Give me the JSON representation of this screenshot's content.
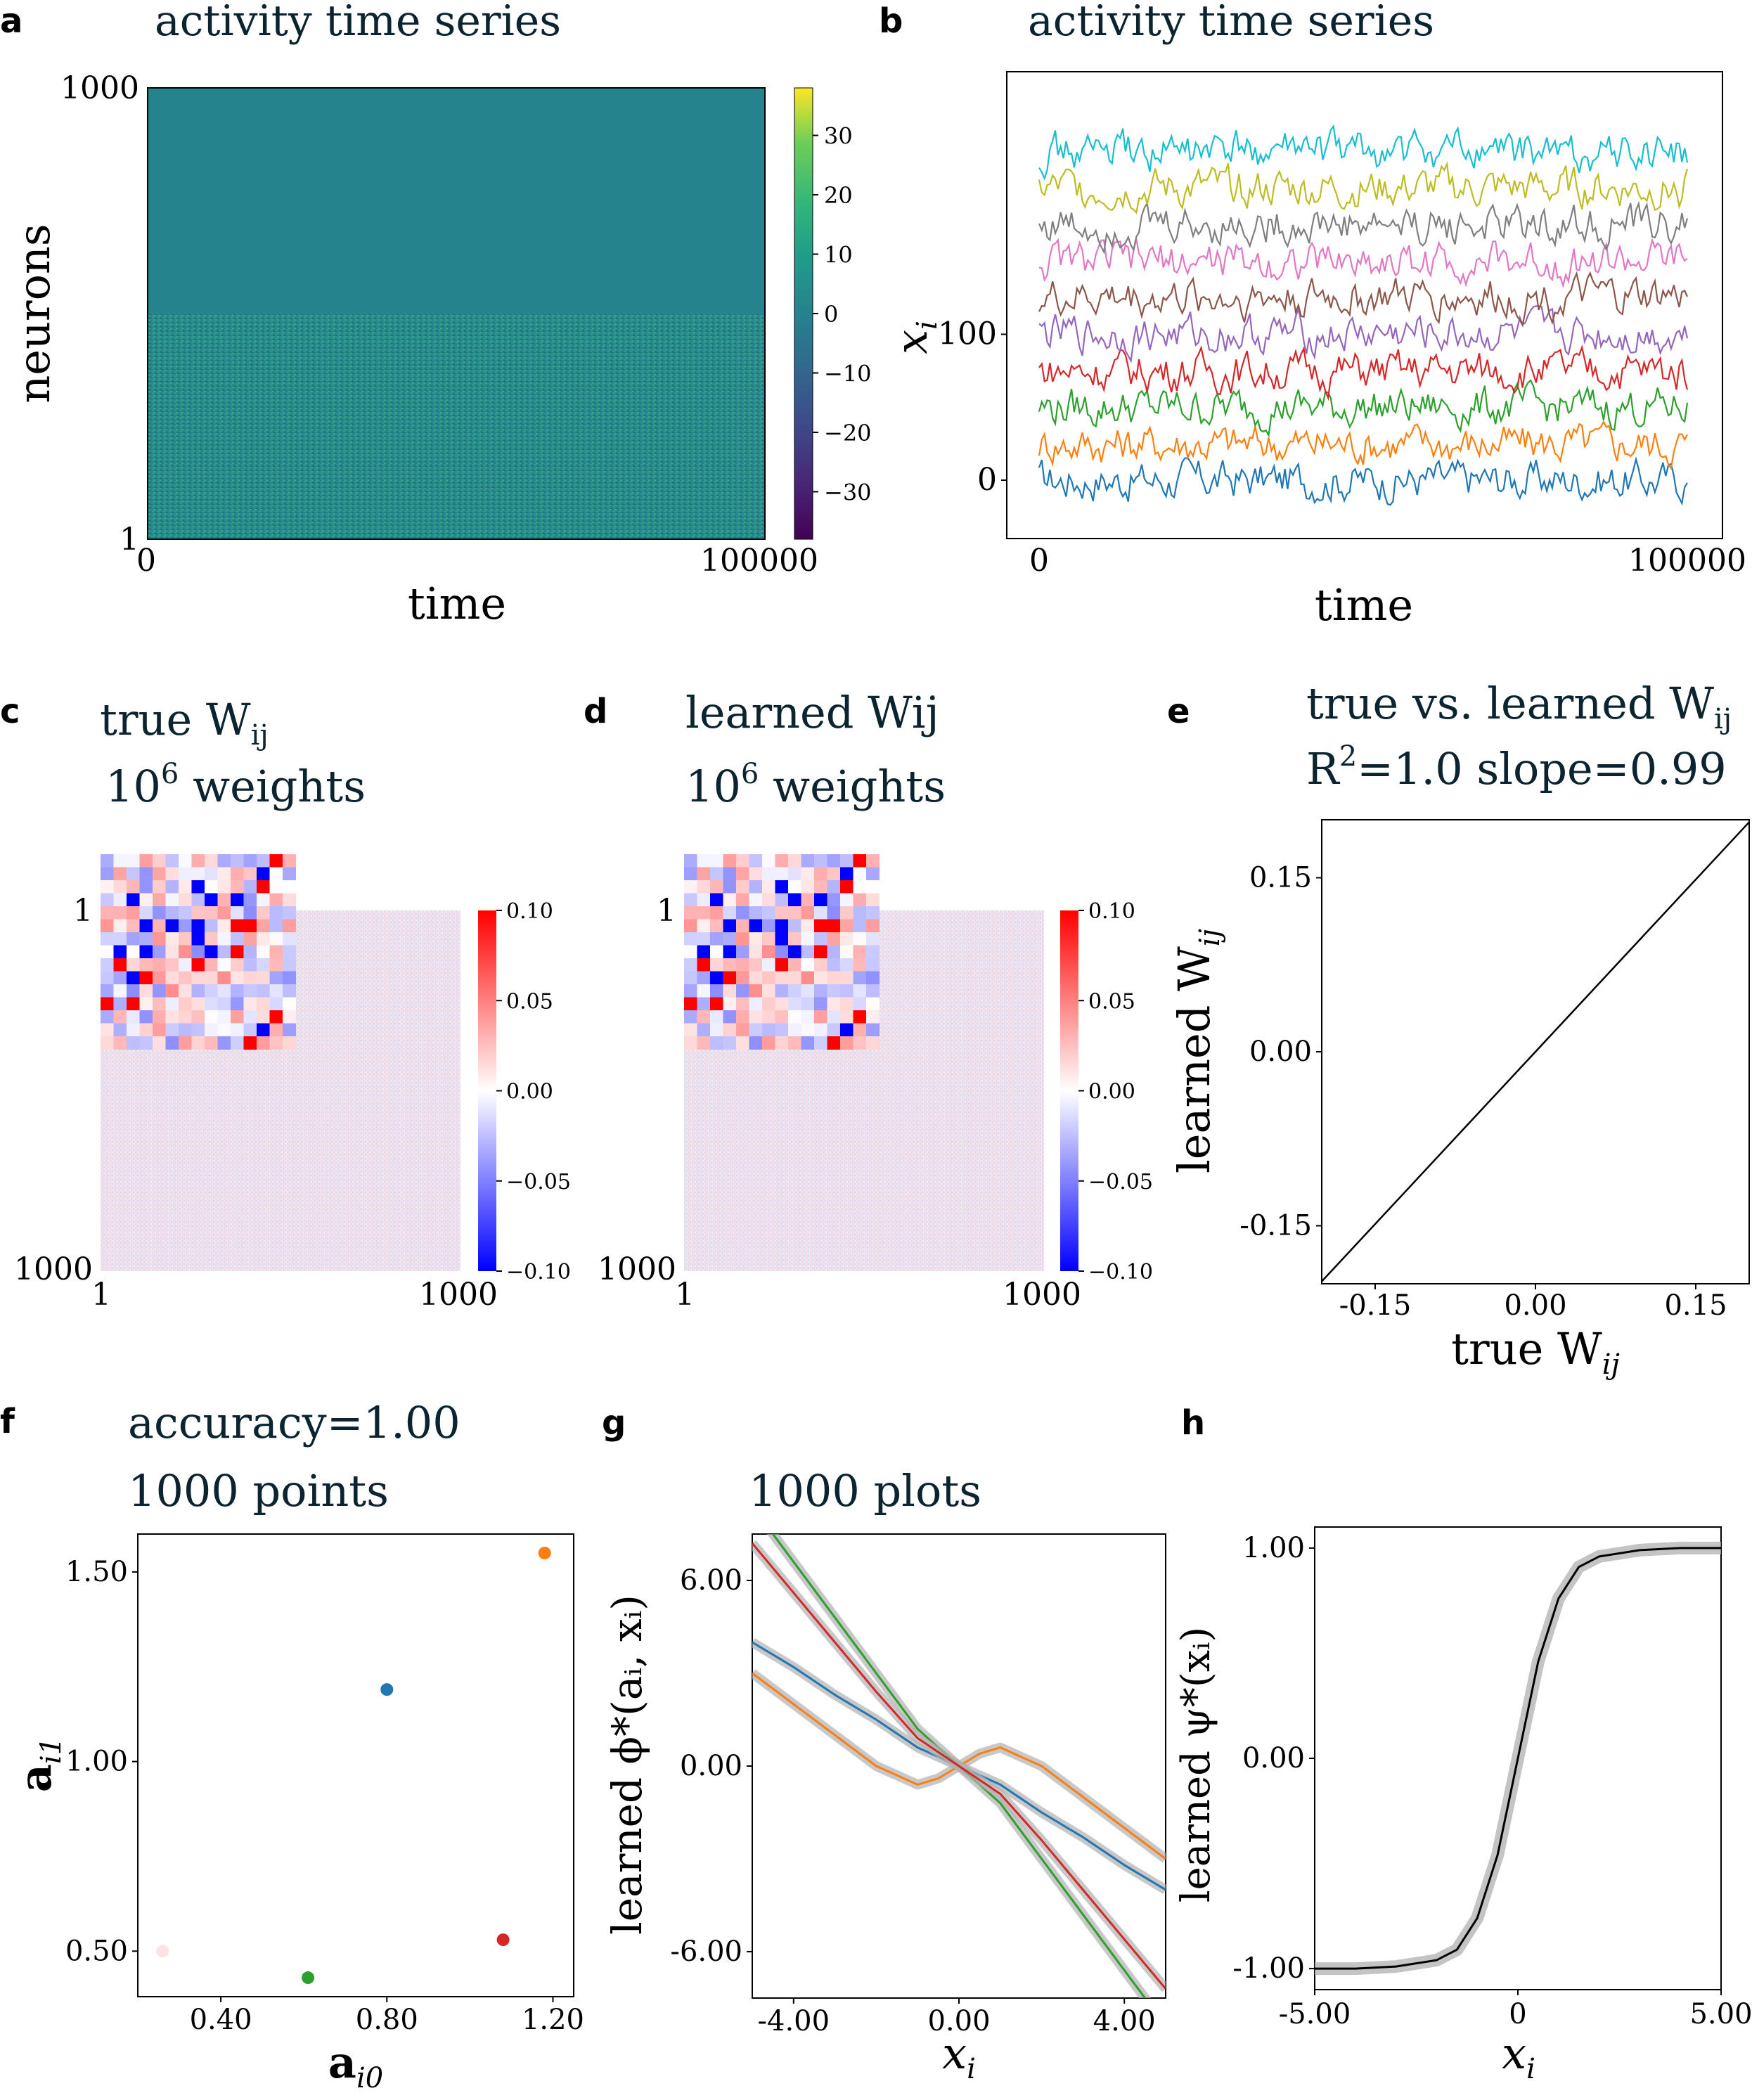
{
  "panels": {
    "a": {
      "letter": "a",
      "title": "activity time series",
      "xlabel": "time",
      "ylabel": "neurons",
      "xticks": [
        "0",
        "100000"
      ],
      "yticks": [
        "1000",
        "1"
      ],
      "colorbar_ticks": [
        "30",
        "20",
        "10",
        "0",
        "−10",
        "−20",
        "−30"
      ]
    },
    "b": {
      "letter": "b",
      "title": "activity time series",
      "xlabel": "time",
      "ylabel": "x",
      "ylabel_sub": "i",
      "xticks": [
        "0",
        "100000"
      ],
      "yticks": [
        "100",
        "0"
      ]
    },
    "c": {
      "letter": "c",
      "title_main": "true W",
      "title_sub": "ij",
      "title_line2": "10",
      "title_line2_sup": "6",
      "title_line2_rest": " weights",
      "xticks": [
        "1",
        "1000"
      ],
      "yticks": [
        "1",
        "1000"
      ],
      "colorbar_ticks": [
        "0.10",
        "0.05",
        "0.00",
        "−0.05",
        "−0.10"
      ]
    },
    "d": {
      "letter": "d",
      "title_main": "learned Wij",
      "title_line2": "10",
      "title_line2_sup": "6",
      "title_line2_rest": " weights",
      "xticks": [
        "1",
        "1000"
      ],
      "yticks": [
        "1",
        "1000"
      ],
      "colorbar_ticks": [
        "0.10",
        "0.05",
        "0.00",
        "−0.05",
        "−0.10"
      ]
    },
    "e": {
      "letter": "e",
      "title_main": "true vs. learned W",
      "title_sub": "ij",
      "title_line2": "R",
      "title_line2_sup": "2",
      "title_line2_rest": "=1.0  slope=0.99",
      "xlabel": "true W",
      "xlabel_sub": "ij",
      "ylabel": "learned W",
      "ylabel_sub": "ij",
      "xticks": [
        "-0.15",
        "0.00",
        "0.15"
      ],
      "yticks": [
        "0.15",
        "0.00",
        "-0.15"
      ]
    },
    "f": {
      "letter": "f",
      "title": "accuracy=1.00",
      "title_line2": "1000 points",
      "xlabel": "a",
      "xlabel_sub": "i0",
      "ylabel": "a",
      "ylabel_sub": "i1",
      "xticks": [
        "0.40",
        "0.80",
        "1.20"
      ],
      "yticks": [
        "1.50",
        "1.00",
        "0.50"
      ]
    },
    "g": {
      "letter": "g",
      "title": "1000 plots",
      "xlabel": "x",
      "xlabel_sub": "i",
      "ylabel": "learned ϕ*(aᵢ, xᵢ)",
      "xticks": [
        "-4.00",
        "0.00",
        "4.00"
      ],
      "yticks": [
        "6.00",
        "0.00",
        "-6.00"
      ]
    },
    "h": {
      "letter": "h",
      "xlabel": "x",
      "xlabel_sub": "i",
      "ylabel": "learned ψ*(xᵢ)",
      "xticks": [
        "-5.00",
        "0",
        "5.00"
      ],
      "yticks": [
        "1.00",
        "0.00",
        "-1.00"
      ]
    }
  },
  "colors": {
    "title": "#0b2430",
    "series": [
      "#1f77b4",
      "#ff7f0e",
      "#2ca02c",
      "#d62728",
      "#9467bd",
      "#8c564b",
      "#e377c2",
      "#7f7f7f",
      "#bcbd22",
      "#17becf"
    ]
  },
  "chart_data": [
    {
      "panel": "a",
      "type": "heatmap",
      "x_range": [
        0,
        100000
      ],
      "y_range": [
        1,
        1000
      ],
      "colorbar_range": [
        -38,
        38
      ],
      "colormap": "viridis",
      "notes_values": "upper neurons (~500-1000) near 0; lower neurons (~1-500) spread roughly -15 to 15"
    },
    {
      "panel": "b",
      "type": "line",
      "x_range": [
        0,
        100000
      ],
      "ylim": [
        -40,
        280
      ],
      "series_offsets": [
        0,
        25,
        50,
        75,
        100,
        125,
        150,
        175,
        200,
        225
      ]
    },
    {
      "panel": "c",
      "type": "heatmap",
      "x_range": [
        1,
        1000
      ],
      "y_range": [
        1,
        1000
      ],
      "colorbar_range": [
        -0.1,
        0.1
      ]
    },
    {
      "panel": "d",
      "type": "heatmap",
      "x_range": [
        1,
        1000
      ],
      "y_range": [
        1,
        1000
      ],
      "colorbar_range": [
        -0.1,
        0.1
      ]
    },
    {
      "panel": "e",
      "type": "line",
      "xlim": [
        -0.2,
        0.2
      ],
      "ylim": [
        -0.2,
        0.2
      ],
      "x": [
        -0.2,
        0.2
      ],
      "y": [
        -0.198,
        0.198
      ]
    },
    {
      "panel": "f",
      "type": "scatter",
      "xlim": [
        0.2,
        1.25
      ],
      "ylim": [
        0.38,
        1.6
      ],
      "points": [
        {
          "x": 0.8,
          "y": 1.19,
          "color": "#1f77b4"
        },
        {
          "x": 1.18,
          "y": 1.55,
          "color": "#ff7f0e"
        },
        {
          "x": 0.61,
          "y": 0.43,
          "color": "#2ca02c"
        },
        {
          "x": 1.08,
          "y": 0.53,
          "color": "#d62728"
        },
        {
          "x": 0.26,
          "y": 0.5,
          "color": "#fbe4e4"
        }
      ]
    },
    {
      "panel": "g",
      "type": "line",
      "xlim": [
        -5,
        5
      ],
      "ylim": [
        -7.5,
        7.5
      ],
      "series": [
        {
          "color": "#1f77b4",
          "x": [
            -5,
            -4,
            -3,
            -2,
            -1,
            0,
            1,
            2,
            3,
            4,
            5
          ],
          "y": [
            4.0,
            3.2,
            2.3,
            1.5,
            0.6,
            0.0,
            -0.6,
            -1.5,
            -2.3,
            -3.2,
            -4.0
          ]
        },
        {
          "color": "#ff7f0e",
          "x": [
            -5,
            -4,
            -3,
            -2,
            -1,
            -0.5,
            0,
            0.5,
            1,
            2,
            3,
            4,
            5
          ],
          "y": [
            3.0,
            2.0,
            1.0,
            0.0,
            -0.6,
            -0.4,
            0.0,
            0.4,
            0.6,
            0.0,
            -1.0,
            -2.0,
            -3.0
          ]
        },
        {
          "color": "#2ca02c",
          "x": [
            -5,
            -4,
            -3,
            -2,
            -1,
            0,
            1,
            2,
            3,
            4,
            5
          ],
          "y": [
            8.4,
            6.6,
            4.8,
            3.0,
            1.2,
            0.0,
            -1.2,
            -3.0,
            -4.8,
            -6.6,
            -8.4
          ]
        },
        {
          "color": "#d62728",
          "x": [
            -5,
            -4,
            -3,
            -2,
            -1,
            0,
            1,
            2,
            3,
            4,
            5
          ],
          "y": [
            7.2,
            5.6,
            4.0,
            2.4,
            0.9,
            0.0,
            -0.9,
            -2.4,
            -4.0,
            -5.6,
            -7.2
          ]
        }
      ]
    },
    {
      "panel": "h",
      "type": "line",
      "xlim": [
        -5,
        5
      ],
      "ylim": [
        -1.1,
        1.1
      ],
      "x": [
        -5,
        -4,
        -3,
        -2,
        -1.5,
        -1,
        -0.5,
        0,
        0.5,
        1,
        1.5,
        2,
        3,
        4,
        5
      ],
      "y": [
        -1.0,
        -1.0,
        -0.99,
        -0.96,
        -0.91,
        -0.76,
        -0.46,
        0.0,
        0.46,
        0.76,
        0.91,
        0.96,
        0.99,
        1.0,
        1.0
      ]
    }
  ]
}
